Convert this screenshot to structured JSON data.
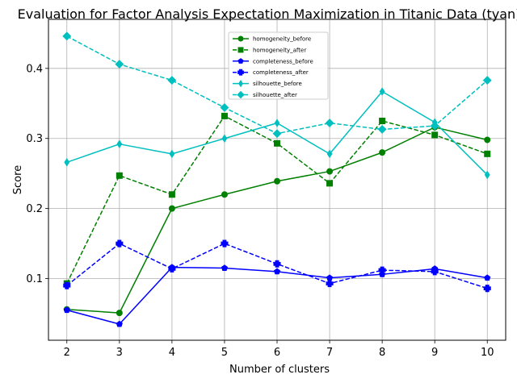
{
  "chart_data": {
    "type": "line",
    "title": "Evaluation for Factor Analysis Expectation Maximization in Titanic Data (tyan)",
    "xlabel": "Number of clusters",
    "ylabel": "Score",
    "x": [
      2,
      3,
      4,
      5,
      6,
      7,
      8,
      9,
      10
    ],
    "xlim": [
      1.65,
      10.35
    ],
    "ylim": [
      0.012,
      0.47
    ],
    "yticks": [
      0.1,
      0.2,
      0.3,
      0.4
    ],
    "ytick_labels": [
      "0.1",
      "0.2",
      "0.3",
      "0.4"
    ],
    "grid": true,
    "legend_position": "top-center",
    "series": [
      {
        "name": "homogeneity_before",
        "color": "#008000",
        "dash": "solid",
        "marker": "circle",
        "values": [
          0.056,
          0.051,
          0.2,
          0.22,
          0.239,
          0.253,
          0.28,
          0.316,
          0.298
        ]
      },
      {
        "name": "homogeneity_after",
        "color": "#008000",
        "dash": "dashed",
        "marker": "square",
        "values": [
          0.093,
          0.247,
          0.22,
          0.332,
          0.293,
          0.236,
          0.325,
          0.305,
          0.278
        ]
      },
      {
        "name": "completeness_before",
        "color": "#0000ff",
        "dash": "solid",
        "marker": "pentagon",
        "values": [
          0.055,
          0.035,
          0.116,
          0.115,
          0.11,
          0.101,
          0.106,
          0.114,
          0.101
        ]
      },
      {
        "name": "completeness_after",
        "color": "#0000ff",
        "dash": "dashed",
        "marker": "plus",
        "values": [
          0.09,
          0.15,
          0.114,
          0.15,
          0.121,
          0.093,
          0.112,
          0.11,
          0.086
        ]
      },
      {
        "name": "silhouette_before",
        "color": "#00bfbf",
        "dash": "solid",
        "marker": "thin_diamond",
        "values": [
          0.266,
          0.292,
          0.278,
          0.3,
          0.322,
          0.278,
          0.367,
          0.323,
          0.248
        ]
      },
      {
        "name": "silhouette_after",
        "color": "#00bfbf",
        "dash": "dashed",
        "marker": "diamond",
        "values": [
          0.446,
          0.406,
          0.383,
          0.344,
          0.307,
          0.322,
          0.313,
          0.318,
          0.383
        ]
      }
    ]
  }
}
